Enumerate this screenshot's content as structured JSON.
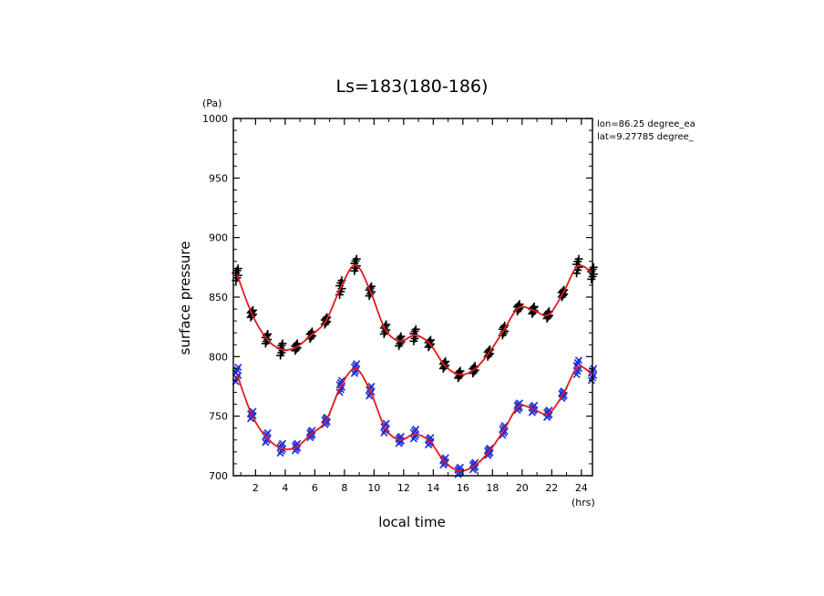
{
  "chart_data": {
    "type": "scatter",
    "title": "Ls=183(180-186)",
    "xlabel": "local time",
    "xunit": "(hrs)",
    "ylabel": "surface pressure",
    "yunit": "(Pa)",
    "xlim": [
      0.5,
      24.75
    ],
    "ylim": [
      700,
      1000
    ],
    "xticks": [
      2,
      4,
      6,
      8,
      10,
      12,
      14,
      16,
      18,
      20,
      22,
      24
    ],
    "yticks": [
      700,
      750,
      800,
      850,
      900,
      950,
      1000
    ],
    "annotations": [
      "lon=86.25 degree_ea",
      "lat=9.27785 degree_"
    ],
    "x": [
      0.75,
      1.75,
      2.75,
      3.75,
      4.75,
      5.75,
      6.75,
      7.75,
      8.75,
      9.75,
      10.75,
      11.75,
      12.75,
      13.75,
      14.75,
      15.75,
      16.75,
      17.75,
      18.75,
      19.75,
      20.75,
      21.75,
      22.75,
      23.75,
      24.75
    ],
    "series": [
      {
        "marker": "plus",
        "color": "#000000",
        "fit": [
          869,
          836,
          815,
          806,
          808,
          818,
          830,
          858,
          877,
          855,
          823,
          813,
          818,
          811,
          793,
          785,
          789,
          803,
          822,
          841,
          839,
          835,
          853,
          876,
          870
        ],
        "spread": [
          5,
          3,
          4,
          5,
          3,
          3,
          3,
          6,
          5,
          4,
          4,
          4,
          5,
          3,
          3,
          3,
          3,
          3,
          4,
          3,
          3,
          3,
          3,
          6,
          5
        ]
      },
      {
        "marker": "x",
        "color": "#1f2fd6",
        "fit": [
          785,
          751,
          732,
          723,
          724,
          735,
          746,
          775,
          790,
          771,
          740,
          730,
          735,
          729,
          712,
          704,
          708,
          720,
          738,
          758,
          756,
          752,
          768,
          791,
          785
        ],
        "spread": [
          6,
          3,
          4,
          4,
          3,
          3,
          3,
          5,
          4,
          4,
          4,
          3,
          4,
          3,
          3,
          3,
          3,
          3,
          4,
          3,
          3,
          3,
          3,
          6,
          5
        ]
      }
    ],
    "fit_color": "#e31a1c"
  }
}
